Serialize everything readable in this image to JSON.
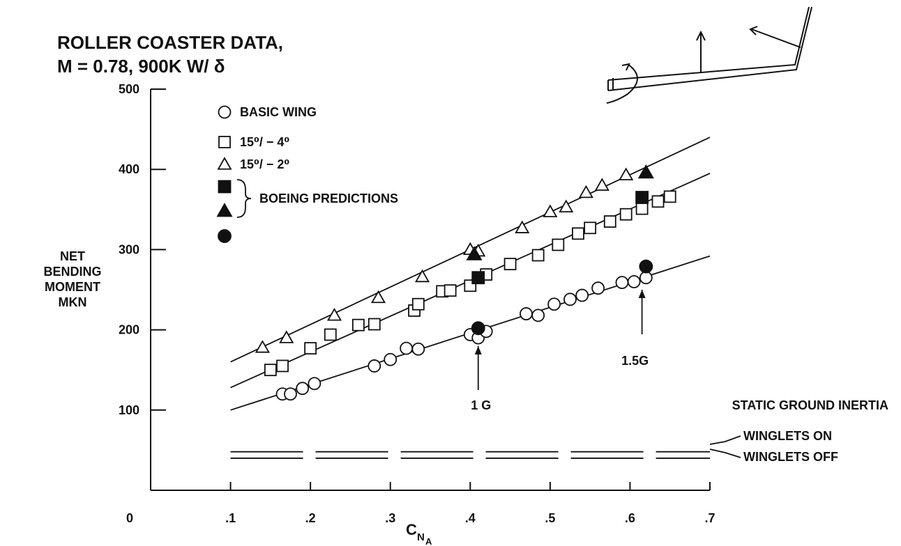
{
  "chart_data": {
    "type": "scatter",
    "title": "ROLLER COASTER DATA,",
    "subtitle": "M = 0.78, 900K W/ δ",
    "xlabel": "C",
    "xlabel_sub": "N",
    "xlabel_subsub": "A",
    "ylabel": [
      "NET",
      "BENDING",
      "MOMENT",
      "MKN"
    ],
    "xlim": [
      0,
      0.7
    ],
    "ylim": [
      0,
      500
    ],
    "origin_label": "0",
    "x_ticks": [
      {
        "value": 0.1,
        "label": ".1"
      },
      {
        "value": 0.2,
        "label": ".2"
      },
      {
        "value": 0.3,
        "label": ".3"
      },
      {
        "value": 0.4,
        "label": ".4"
      },
      {
        "value": 0.5,
        "label": ".5"
      },
      {
        "value": 0.6,
        "label": ".6"
      },
      {
        "value": 0.7,
        "label": ".7"
      }
    ],
    "y_ticks": [
      {
        "value": 100,
        "label": "100"
      },
      {
        "value": 200,
        "label": "200"
      },
      {
        "value": 300,
        "label": "300"
      },
      {
        "value": 400,
        "label": "400"
      },
      {
        "value": 500,
        "label": "500"
      }
    ],
    "grid": false,
    "legend_position": "top-left",
    "legend": {
      "entries": [
        {
          "marker": "circle-open",
          "label": "BASIC WING"
        },
        {
          "marker": "square-open",
          "label": "15⁰/ − 4⁰"
        },
        {
          "marker": "triangle-open",
          "label": "15⁰/ − 2⁰"
        }
      ],
      "predictions_label": "BOEING PREDICTIONS",
      "prediction_markers": [
        "square-filled",
        "triangle-filled",
        "circle-filled"
      ]
    },
    "series": [
      {
        "marker": "circle-open",
        "points": [
          [
            0.165,
            120
          ],
          [
            0.175,
            120
          ],
          [
            0.19,
            127
          ],
          [
            0.205,
            133
          ],
          [
            0.28,
            155
          ],
          [
            0.3,
            163
          ],
          [
            0.32,
            177
          ],
          [
            0.335,
            176
          ],
          [
            0.4,
            194
          ],
          [
            0.41,
            190
          ],
          [
            0.42,
            198
          ],
          [
            0.47,
            220
          ],
          [
            0.485,
            218
          ],
          [
            0.505,
            232
          ],
          [
            0.525,
            238
          ],
          [
            0.54,
            243
          ],
          [
            0.56,
            252
          ],
          [
            0.59,
            259
          ],
          [
            0.605,
            260
          ],
          [
            0.62,
            265
          ]
        ],
        "fit_line": [
          [
            0.1,
            100
          ],
          [
            0.7,
            292
          ]
        ]
      },
      {
        "marker": "square-open",
        "points": [
          [
            0.15,
            150
          ],
          [
            0.165,
            155
          ],
          [
            0.2,
            177
          ],
          [
            0.225,
            194
          ],
          [
            0.26,
            206
          ],
          [
            0.28,
            207
          ],
          [
            0.33,
            224
          ],
          [
            0.335,
            232
          ],
          [
            0.365,
            248
          ],
          [
            0.375,
            249
          ],
          [
            0.4,
            255
          ],
          [
            0.42,
            269
          ],
          [
            0.45,
            282
          ],
          [
            0.485,
            293
          ],
          [
            0.51,
            306
          ],
          [
            0.535,
            320
          ],
          [
            0.55,
            327
          ],
          [
            0.575,
            335
          ],
          [
            0.595,
            344
          ],
          [
            0.615,
            351
          ],
          [
            0.635,
            360
          ],
          [
            0.65,
            366
          ]
        ],
        "fit_line": [
          [
            0.1,
            128
          ],
          [
            0.7,
            395
          ]
        ]
      },
      {
        "marker": "triangle-open",
        "points": [
          [
            0.14,
            178
          ],
          [
            0.17,
            190
          ],
          [
            0.23,
            218
          ],
          [
            0.285,
            240
          ],
          [
            0.34,
            266
          ],
          [
            0.4,
            300
          ],
          [
            0.41,
            298
          ],
          [
            0.465,
            327
          ],
          [
            0.5,
            347
          ],
          [
            0.52,
            353
          ],
          [
            0.545,
            371
          ],
          [
            0.565,
            380
          ],
          [
            0.595,
            393
          ]
        ],
        "fit_line": [
          [
            0.1,
            160
          ],
          [
            0.7,
            440
          ]
        ]
      },
      {
        "marker": "square-filled",
        "points": [
          [
            0.41,
            265
          ],
          [
            0.615,
            365
          ]
        ]
      },
      {
        "marker": "triangle-filled",
        "points": [
          [
            0.405,
            294
          ],
          [
            0.62,
            396
          ]
        ]
      },
      {
        "marker": "circle-filled",
        "points": [
          [
            0.41,
            202
          ],
          [
            0.62,
            279
          ]
        ]
      }
    ],
    "reference_lines": [
      {
        "label": "WINGLETS ON",
        "value": 48
      },
      {
        "label": "WINGLETS OFF",
        "value": 40
      }
    ],
    "reference_group_label": "STATIC GROUND INERTIA",
    "annotations": [
      {
        "label": "1 G",
        "x": 0.41
      },
      {
        "label": "1.5G",
        "x": 0.615
      }
    ]
  }
}
